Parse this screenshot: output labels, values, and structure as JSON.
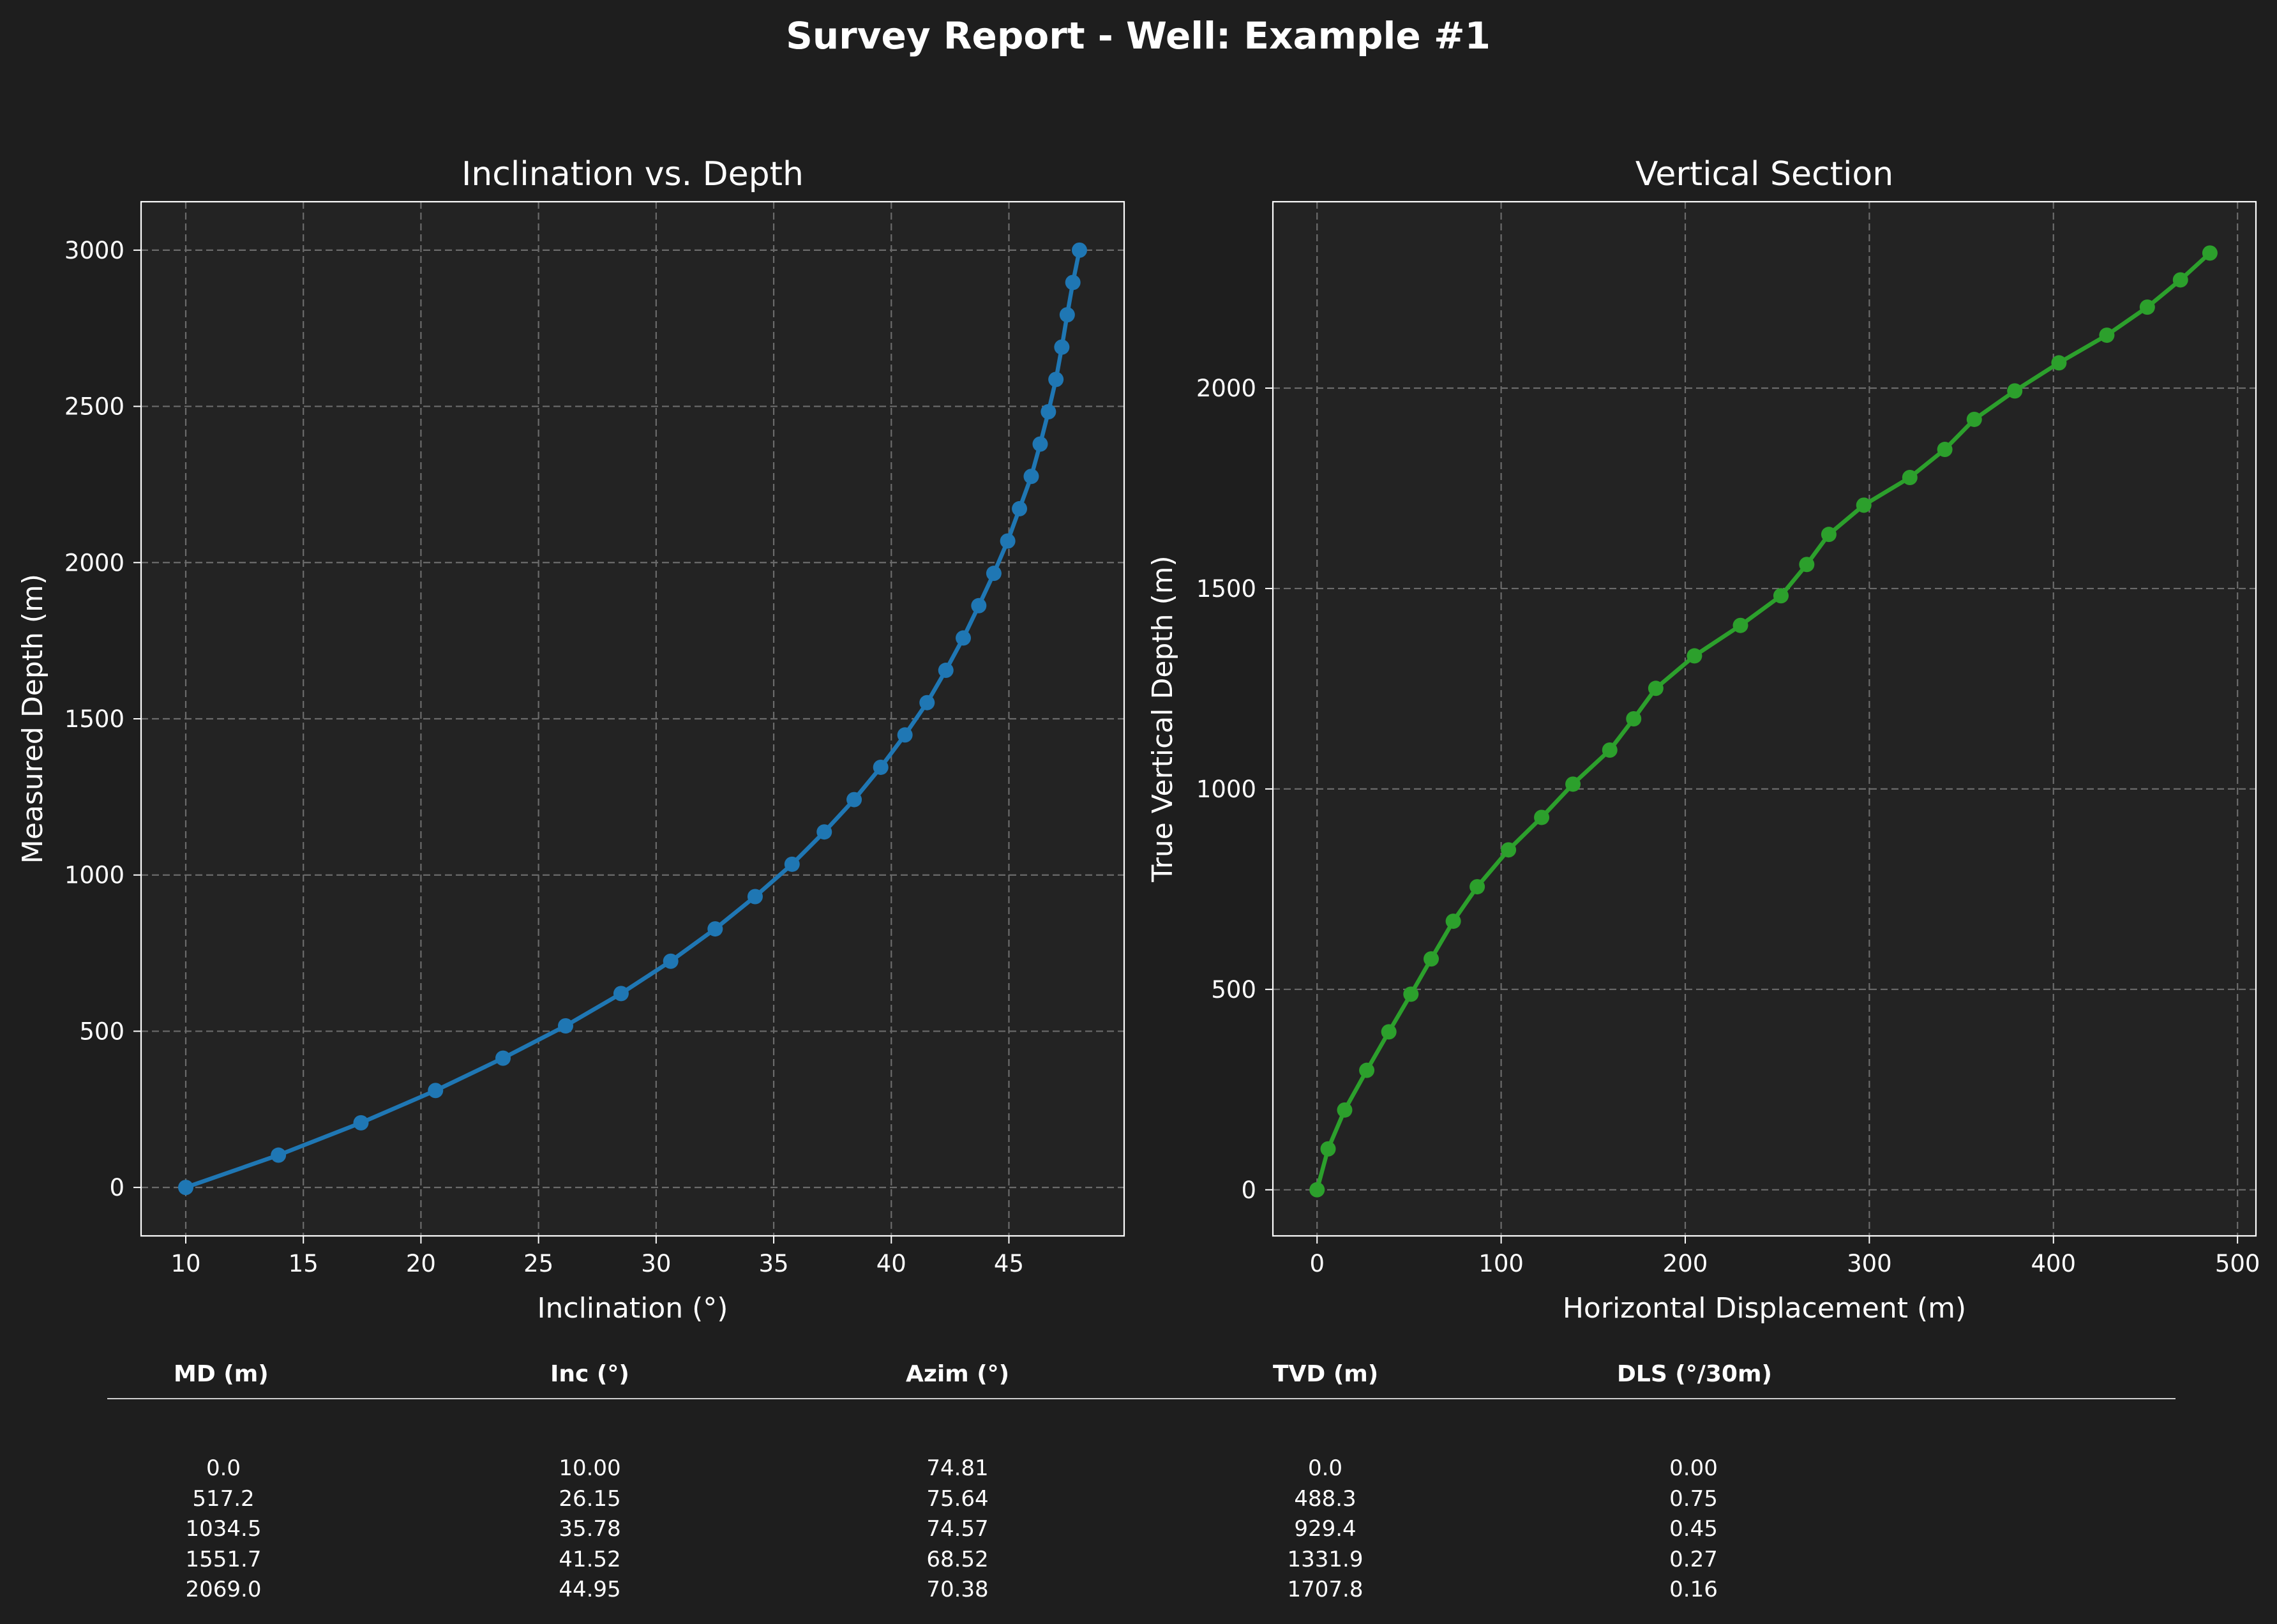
{
  "suptitle": "Survey Report - Well: Example #1",
  "colors": {
    "background": "#1e1e1e",
    "axes_face": "#232323",
    "grid": "#6b6b6b",
    "inclination_series": "#1f77b4",
    "section_series": "#2ca02c"
  },
  "chart_data": [
    {
      "type": "line",
      "title": "Inclination vs. Depth",
      "xlabel": "Inclination (°)",
      "ylabel": "Measured Depth (m)",
      "xlim": [
        8.1,
        49.9
      ],
      "ylim": [
        3155,
        -155
      ],
      "y_inverted": true,
      "xticks": [
        10,
        15,
        20,
        25,
        30,
        35,
        40,
        45
      ],
      "yticks": [
        0,
        500,
        1000,
        1500,
        2000,
        2500,
        3000
      ],
      "grid": true,
      "marker": "circle",
      "series": [
        {
          "x": [
            10.0,
            13.94,
            17.45,
            20.62,
            23.49,
            26.15,
            28.51,
            30.62,
            32.51,
            34.21,
            35.78,
            37.15,
            38.42,
            39.55,
            40.58,
            41.52,
            42.32,
            43.06,
            43.72,
            44.36,
            44.95,
            45.45,
            45.95,
            46.33,
            46.68,
            47.0,
            47.25,
            47.48,
            47.72,
            48.0
          ],
          "y": [
            0,
            103.4,
            206.9,
            310.3,
            413.8,
            517.2,
            620.7,
            724.1,
            827.6,
            931.0,
            1034.5,
            1137.9,
            1241.4,
            1344.8,
            1448.3,
            1551.7,
            1655.2,
            1758.6,
            1862.1,
            1965.5,
            2069.0,
            2172.4,
            2275.9,
            2379.3,
            2482.8,
            2586.2,
            2689.7,
            2793.1,
            2896.6,
            3000.0
          ]
        }
      ]
    },
    {
      "type": "line",
      "title": "Vertical Section",
      "xlabel": "Horizontal Displacement (m)",
      "ylabel": "True Vertical Depth (m)",
      "xlim": [
        -24,
        510
      ],
      "ylim": [
        2465,
        -115
      ],
      "y_inverted": true,
      "xticks": [
        0,
        100,
        200,
        300,
        400,
        500
      ],
      "yticks": [
        0,
        500,
        1000,
        1500,
        2000
      ],
      "grid": true,
      "marker": "circle",
      "series": [
        {
          "x": [
            0,
            6,
            15,
            27,
            39,
            51,
            62,
            74,
            87,
            104,
            122,
            139,
            159,
            172,
            184,
            205,
            230,
            252,
            266,
            278,
            297,
            322,
            341,
            357,
            379,
            403,
            429,
            451,
            469,
            485
          ],
          "y": [
            0,
            102,
            199,
            298,
            394,
            488,
            576,
            670,
            756,
            848,
            929,
            1012,
            1097,
            1175,
            1251,
            1332,
            1408,
            1482,
            1560,
            1635,
            1708,
            1777,
            1847,
            1922,
            1993,
            2063,
            2132,
            2202,
            2270,
            2337
          ]
        }
      ]
    }
  ],
  "table": {
    "headers": [
      "MD (m)",
      "Inc (°)",
      "Azim (°)",
      "TVD (m)",
      "DLS (°/30m)"
    ],
    "rows": [
      [
        "0.0",
        "10.00",
        "74.81",
        "0.0",
        "0.00"
      ],
      [
        "517.2",
        "26.15",
        "75.64",
        "488.3",
        "0.75"
      ],
      [
        "1034.5",
        "35.78",
        "74.57",
        "929.4",
        "0.45"
      ],
      [
        "1551.7",
        "41.52",
        "68.52",
        "1331.9",
        "0.27"
      ],
      [
        "2069.0",
        "44.95",
        "70.38",
        "1707.8",
        "0.16"
      ]
    ]
  }
}
